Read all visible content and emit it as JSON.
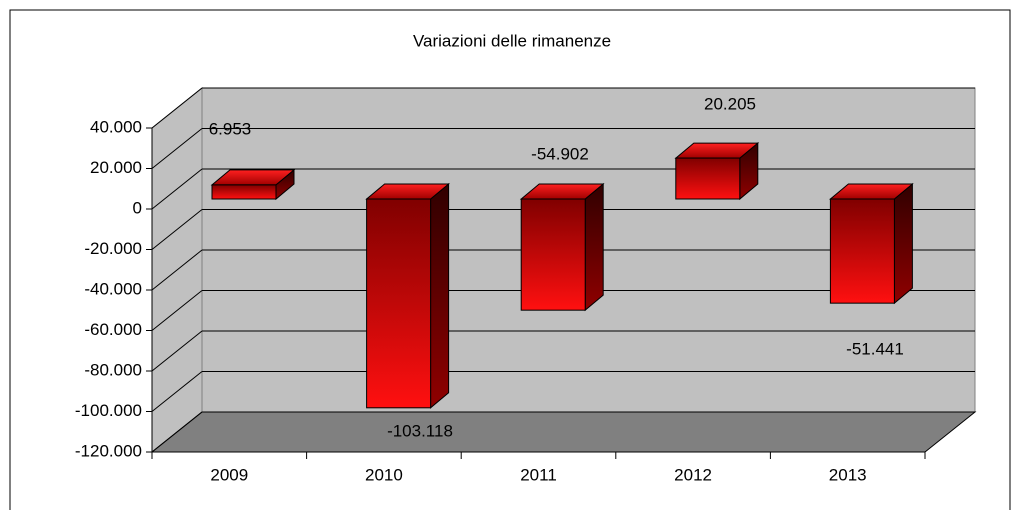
{
  "chart_data": {
    "type": "bar3d",
    "title": "Variazioni delle rimanenze",
    "categories": [
      "2009",
      "2010",
      "2011",
      "2012",
      "2013"
    ],
    "values": [
      6953,
      -103118,
      -54902,
      20205,
      -51441
    ],
    "value_labels": [
      "6.953",
      "-103.118",
      "-54.902",
      "20.205",
      "-51.441"
    ],
    "color": "#ff0000",
    "ylim": [
      -120000,
      40000
    ],
    "yticks": [
      {
        "value": -120000,
        "label": "-120.000"
      },
      {
        "value": -100000,
        "label": "-100.000"
      },
      {
        "value": -80000,
        "label": "-80.000"
      },
      {
        "value": -60000,
        "label": "-60.000"
      },
      {
        "value": -40000,
        "label": "-40.000"
      },
      {
        "value": -20000,
        "label": "-20.000"
      },
      0,
      {
        "value": 20000,
        "label": "20.000"
      },
      {
        "value": 40000,
        "label": "40.000"
      }
    ],
    "grid": true
  }
}
